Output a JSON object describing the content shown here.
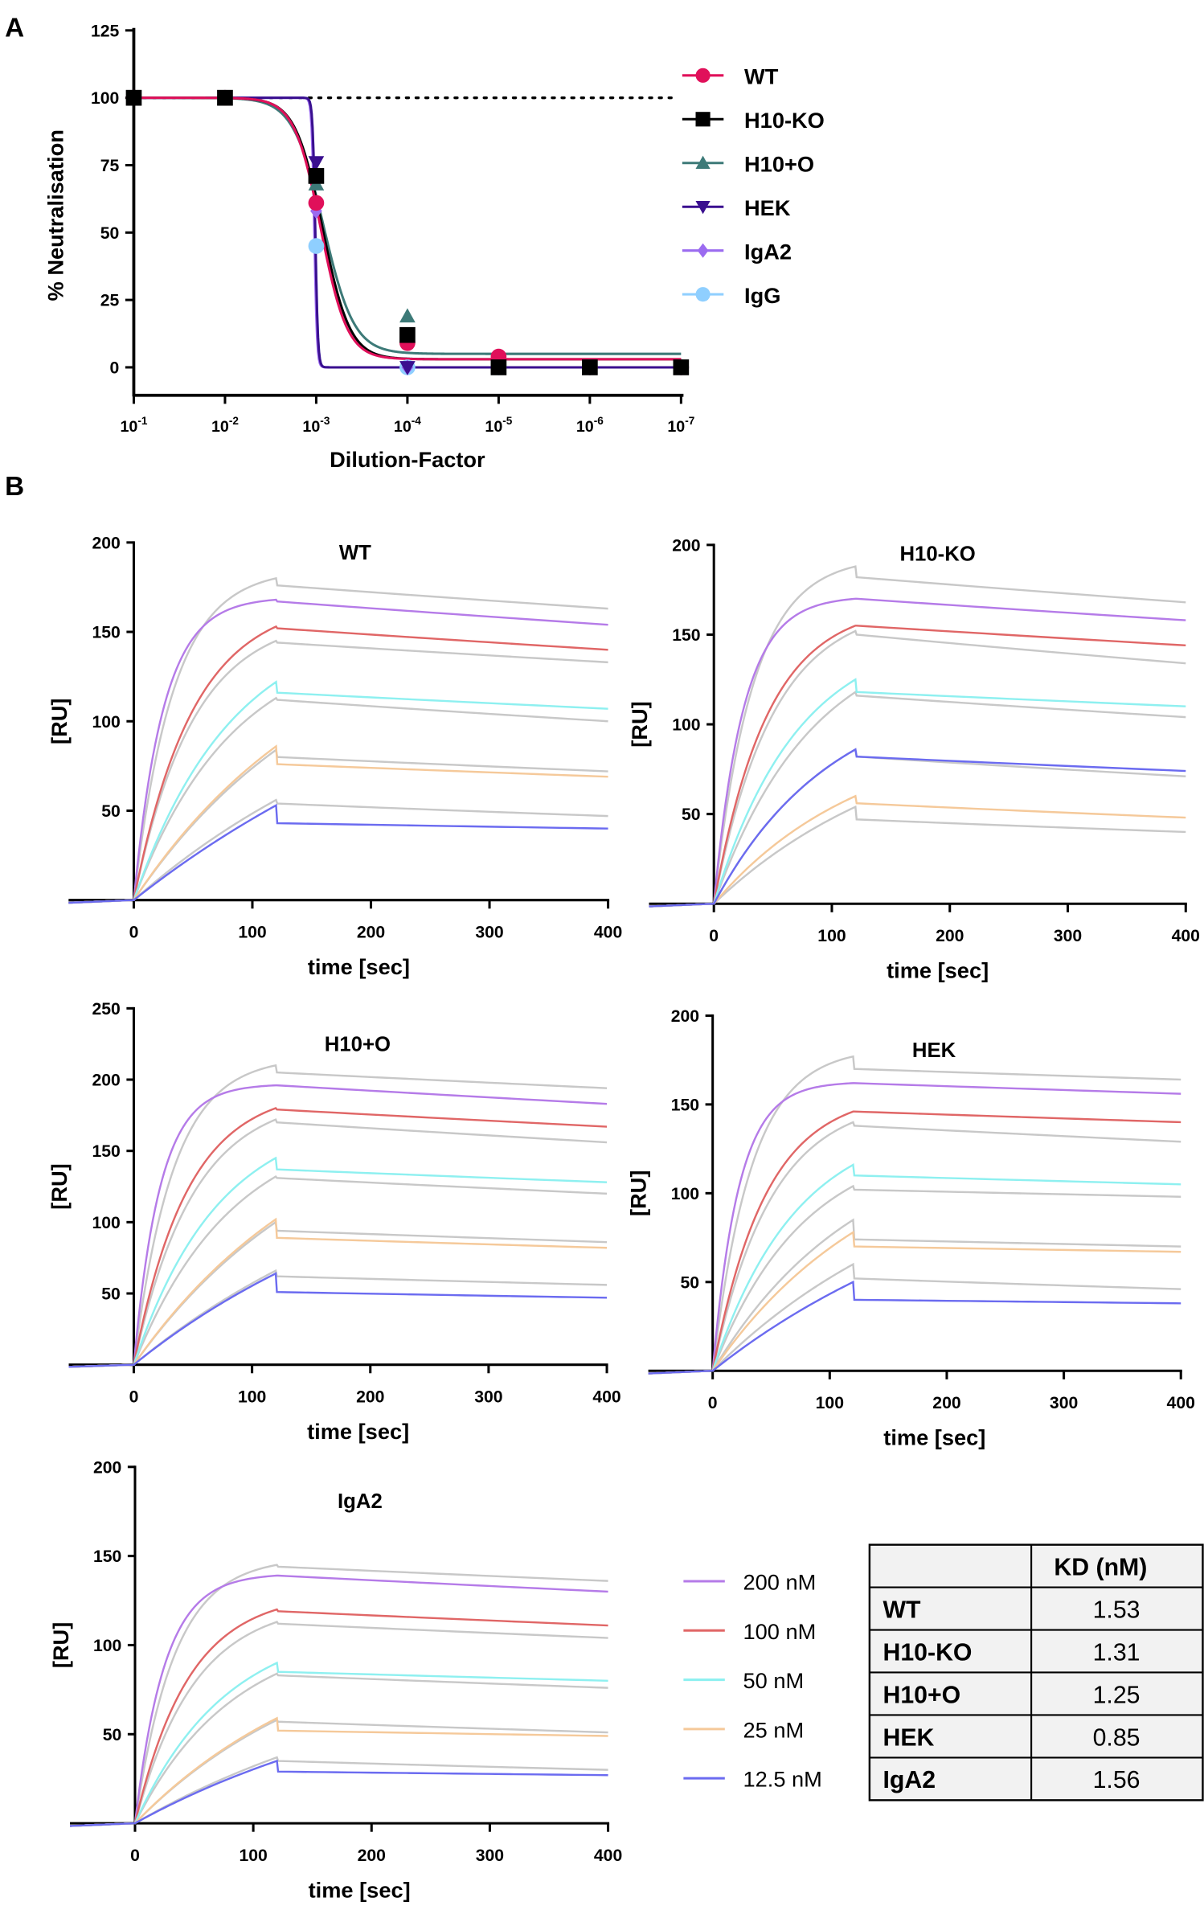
{
  "panel_labels": {
    "a": "A",
    "b": "B"
  },
  "chart_data": [
    {
      "type": "line",
      "panel": "A",
      "title": "",
      "xlabel": "Dilution-Factor",
      "ylabel": "% Neutralisation",
      "ylim": [
        -10,
        125
      ],
      "x_scale": "log (reversed)",
      "x": [
        -1,
        -2,
        -3,
        -4,
        -5,
        -6,
        -7
      ],
      "x_tick_labels": [
        {
          "base": "10",
          "exp": "-1"
        },
        {
          "base": "10",
          "exp": "-2"
        },
        {
          "base": "10",
          "exp": "-3"
        },
        {
          "base": "10",
          "exp": "-4"
        },
        {
          "base": "10",
          "exp": "-5"
        },
        {
          "base": "10",
          "exp": "-6"
        },
        {
          "base": "10",
          "exp": "-7"
        }
      ],
      "y_ticks": [
        "0",
        "25",
        "50",
        "75",
        "100",
        "125"
      ],
      "reference_line": 100,
      "legend_position": "right",
      "series": [
        {
          "name": "WT",
          "color": "#e0105a",
          "marker": "circle",
          "values": [
            100,
            100,
            61,
            9,
            4,
            0,
            0
          ],
          "fit": {
            "bottom": 3,
            "logIC50": -3.05,
            "hill": 3
          }
        },
        {
          "name": "H10-KO",
          "color": "#000000",
          "marker": "square",
          "values": [
            100,
            100,
            71,
            12,
            0,
            0,
            0
          ],
          "fit": {
            "bottom": 3,
            "logIC50": -3.07,
            "hill": 2.9
          }
        },
        {
          "name": "H10+O",
          "color": "#3d7a78",
          "marker": "triangle-up",
          "values": [
            100,
            100,
            68,
            19,
            0,
            0,
            0
          ],
          "fit": {
            "bottom": 5,
            "logIC50": -3.08,
            "hill": 2.6
          }
        },
        {
          "name": "HEK",
          "color": "#3a0f8f",
          "marker": "triangle-down",
          "values": [
            100,
            100,
            76,
            0,
            0,
            0,
            0
          ],
          "fit": {
            "bottom": 0,
            "logIC50": -2.99,
            "hill": 30
          }
        },
        {
          "name": "IgA2",
          "color": "#9b6bf0",
          "marker": "diamond",
          "values": [
            100,
            100,
            58,
            0,
            0,
            0,
            0
          ],
          "fit": {
            "bottom": 0,
            "logIC50": -2.98,
            "hill": 30
          }
        },
        {
          "name": "IgG",
          "color": "#8fcfff",
          "marker": "circle",
          "values": [
            100,
            100,
            45,
            0,
            0,
            0,
            0
          ],
          "fit": {
            "bottom": 0,
            "logIC50": -2.99,
            "hill": 30
          }
        }
      ]
    },
    {
      "type": "line",
      "panel": "B",
      "xlabel": "time [sec]",
      "ylabel": "[RU]",
      "x_ticks": [
        "0",
        "100",
        "200",
        "300",
        "400"
      ],
      "xlim": [
        -55,
        400
      ],
      "association_end_sec": 120,
      "concentrations": [
        {
          "label": "200 nM",
          "color": "#b57be8"
        },
        {
          "label": "100 nM",
          "color": "#e06666"
        },
        {
          "label": "50 nM",
          "color": "#8ef0f0"
        },
        {
          "label": "25 nM",
          "color": "#f5c99a"
        },
        {
          "label": "12.5 nM",
          "color": "#6b6bf0"
        }
      ],
      "raw_color": "#c8c8c8",
      "series_format": "[value at 120s (association end), value just after 120s, value at 400s, kobs per sec]",
      "subplots": [
        {
          "title": "WT",
          "ylim": [
            0,
            200
          ],
          "y_ticks": [
            "50",
            "100",
            "150",
            "200"
          ],
          "fit": [
            [
              168,
              167,
              154,
              0.04
            ],
            [
              153,
              152,
              140,
              0.02
            ],
            [
              122,
              116,
              107,
              0.012
            ],
            [
              86,
              76,
              69,
              0.006
            ],
            [
              53,
              43,
              40,
              0.003
            ]
          ],
          "raw": [
            [
              180,
              176,
              163,
              0.03
            ],
            [
              145,
              144,
              133,
              0.02
            ],
            [
              113,
              112,
              100,
              0.012
            ],
            [
              84,
              80,
              72,
              0.006
            ],
            [
              56,
              54,
              47,
              0.004
            ]
          ]
        },
        {
          "title": "H10-KO",
          "ylim": [
            0,
            200
          ],
          "y_ticks": [
            "50",
            "100",
            "150",
            "200"
          ],
          "fit": [
            [
              170,
              170,
              158,
              0.04
            ],
            [
              155,
              155,
              144,
              0.022
            ],
            [
              125,
              118,
              110,
              0.014
            ],
            [
              60,
              56,
              48,
              0.008
            ],
            [
              86,
              82,
              74,
              0.01
            ]
          ],
          "raw": [
            [
              188,
              182,
              168,
              0.03
            ],
            [
              152,
              150,
              134,
              0.02
            ],
            [
              118,
              116,
              104,
              0.012
            ],
            [
              86,
              82,
              71,
              0.01
            ],
            [
              54,
              47,
              40,
              0.006
            ]
          ]
        },
        {
          "title": "H10+O",
          "ylim": [
            0,
            250
          ],
          "y_ticks": [
            "50",
            "100",
            "150",
            "200",
            "250"
          ],
          "fit": [
            [
              196,
              196,
              183,
              0.045
            ],
            [
              180,
              179,
              167,
              0.022
            ],
            [
              145,
              137,
              128,
              0.014
            ],
            [
              102,
              89,
              82,
              0.006
            ],
            [
              64,
              51,
              47,
              0.004
            ]
          ],
          "raw": [
            [
              210,
              205,
              194,
              0.03
            ],
            [
              172,
              170,
              156,
              0.02
            ],
            [
              132,
              131,
              120,
              0.012
            ],
            [
              100,
              94,
              86,
              0.006
            ],
            [
              66,
              62,
              56,
              0.004
            ]
          ]
        },
        {
          "title": "HEK",
          "ylim": [
            0,
            200
          ],
          "y_ticks": [
            "50",
            "100",
            "150",
            "200"
          ],
          "fit": [
            [
              162,
              162,
              156,
              0.045
            ],
            [
              146,
              146,
              140,
              0.022
            ],
            [
              116,
              110,
              105,
              0.014
            ],
            [
              78,
              70,
              67,
              0.007
            ],
            [
              50,
              40,
              38,
              0.004
            ]
          ],
          "raw": [
            [
              177,
              170,
              164,
              0.03
            ],
            [
              140,
              138,
              129,
              0.02
            ],
            [
              104,
              102,
              98,
              0.013
            ],
            [
              85,
              74,
              70,
              0.008
            ],
            [
              60,
              52,
              46,
              0.005
            ]
          ]
        },
        {
          "title": "IgA2",
          "ylim": [
            0,
            200
          ],
          "y_ticks": [
            "50",
            "100",
            "150",
            "200"
          ],
          "fit": [
            [
              139,
              139,
              130,
              0.04
            ],
            [
              120,
              119,
              111,
              0.022
            ],
            [
              90,
              85,
              80,
              0.013
            ],
            [
              59,
              52,
              49,
              0.006
            ],
            [
              35,
              29,
              27,
              0.004
            ]
          ],
          "raw": [
            [
              145,
              144,
              136,
              0.03
            ],
            [
              113,
              112,
              104,
              0.02
            ],
            [
              84,
              83,
              76,
              0.012
            ],
            [
              58,
              57,
              51,
              0.006
            ],
            [
              37,
              35,
              30,
              0.004
            ]
          ]
        }
      ]
    },
    {
      "type": "table",
      "header": [
        "",
        "KD (nM)"
      ],
      "rows": [
        [
          "WT",
          "1.53"
        ],
        [
          "H10-KO",
          "1.31"
        ],
        [
          "H10+O",
          "1.25"
        ],
        [
          "HEK",
          "0.85"
        ],
        [
          "IgA2",
          "1.56"
        ]
      ]
    }
  ]
}
